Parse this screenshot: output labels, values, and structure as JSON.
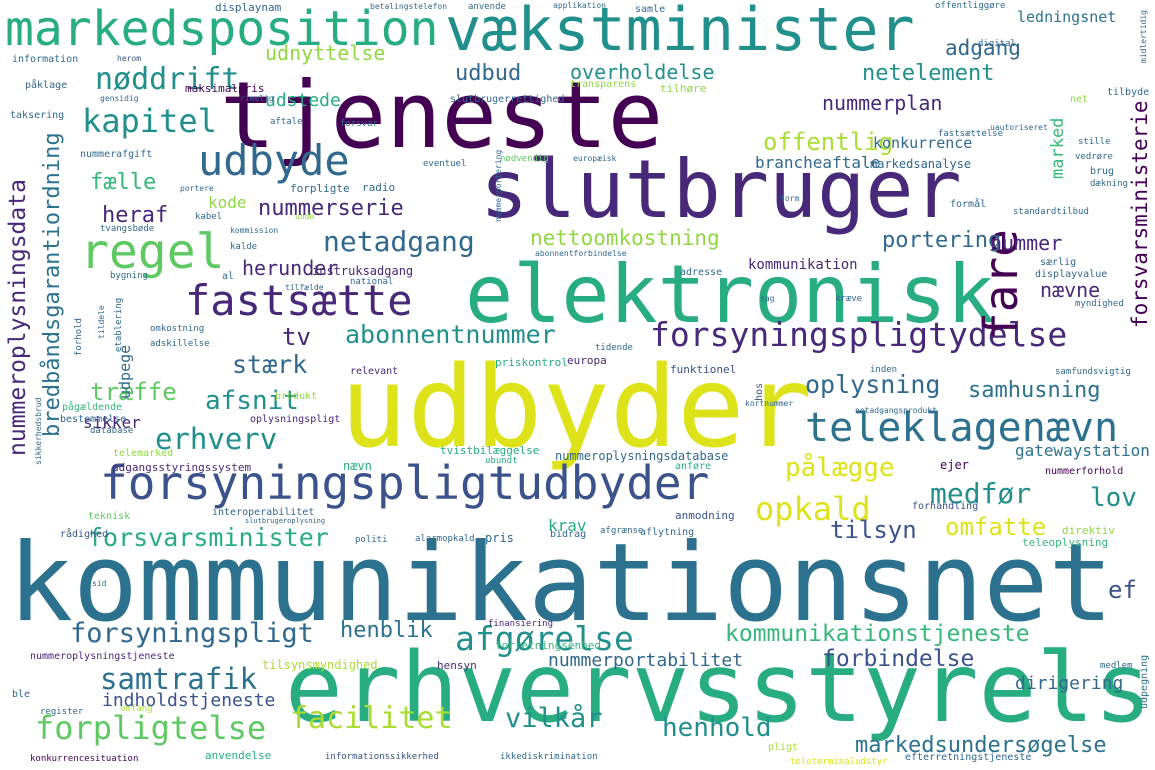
{
  "words": [
    "kommunikationsnet",
    "udbyder",
    "erhvervsstyrelse",
    "tjeneste",
    "slutbruger",
    "elektronisk",
    "vækstminister",
    "markedsposition",
    "forsyningspligtudbyder",
    "teleklagenævn",
    "forsyningspligtydelse",
    "fastsætte",
    "regel",
    "udbyde",
    "fare",
    "kapitel",
    "nøddrift",
    "udnyttelse",
    "netadgang",
    "nettoomkostning",
    "abonnentnummer",
    "forsvarsminister",
    "forsyningspligt",
    "henblik",
    "afgørelse",
    "kommunikationstjeneste",
    "samtrafik",
    "forpligtelse",
    "facilitet",
    "vilkår",
    "henhold",
    "markedsundersøgelse",
    "nummerportabilitet",
    "forbindelse",
    "dirigering",
    "opkald",
    "medfør",
    "pålægge",
    "tilsyn",
    "omfatte",
    "lov",
    "ef",
    "oplysning",
    "samhusning",
    "afsnit",
    "erhverv",
    "træffe",
    "stærk",
    "sikker",
    "udpege",
    "tv",
    "herunder",
    "heraf",
    "fælle",
    "kode",
    "nummerserie",
    "portering",
    "nummer",
    "nævne",
    "offentlig",
    "marked",
    "brancheaftale",
    "nummerplan",
    "netelement",
    "adgang",
    "overholdelse",
    "udbud",
    "udstede",
    "forsvarsministerie",
    "nummeroplysningsdata",
    "bredbåndsgarantiordning",
    "indholdstjeneste",
    "gatewaystation",
    "krav",
    "ledningsnet",
    "konkurrence",
    "markedsanalyse",
    "kommunikation",
    "instruksadgang",
    "nummeroplysningsdatabase",
    "tvistbilæggelse",
    "adgangsstyringssystem",
    "nævn",
    "telemarked",
    "priskontrol",
    "europa",
    "relevant",
    "produkt",
    "oplysningspligt",
    "pågældende",
    "bestemmelse",
    "database",
    "teknisk",
    "interoperabilitet",
    "anmodning",
    "forhandling",
    "nummerforhold",
    "anføre",
    "ejer",
    "ubundt",
    "direktiv",
    "teleoplysning",
    "samfundsvigtig",
    "funktionel",
    "hos",
    "inden",
    "rådighed",
    "politi",
    "alarmopkald",
    "pris",
    "bidrag",
    "aflytning",
    "afgrænse",
    "finansiering",
    "forretningsenhed",
    "nummeroplysningstjeneste",
    "tilsynsmyndighed",
    "hensyn",
    "medlem",
    "udpegning",
    "register",
    "omfang",
    "ble",
    "konkurrencesituation",
    "anvendelse",
    "informationssikkerhed",
    "ikkediskrimination",
    "pligt",
    "efterretningstjeneste",
    "teleterminaludstyr",
    "displaynam",
    "betalingstelefon",
    "anvende",
    "applikation",
    "samle",
    "offentliggøre",
    "digital",
    "information",
    "herom",
    "maksimalpris",
    "rimelig",
    "tilhøre",
    "net",
    "tilbyde",
    "påklage",
    "gensidig",
    "slutbrugerrettighed",
    "transparens",
    "taksering",
    "aftale",
    "forsvar",
    "uautoriseret",
    "stille",
    "nummerafgift",
    "eventuel",
    "nødvendig",
    "europæisk",
    "vedrøre",
    "brug",
    "dækning",
    "kabel",
    "forpligte",
    "radio",
    "tvangsbøde",
    "unde",
    "form",
    "formål",
    "standardtilbud",
    "kommission",
    "kalde",
    "abonnentforbindelse",
    "bygning",
    "særlig",
    "displayvalue",
    "tilfælde",
    "national",
    "adresse",
    "sag",
    "kræve",
    "myndighed",
    "al",
    "tildele",
    "etablering",
    "omkostning",
    "adskillelse",
    "tidende",
    "forhold",
    "sid",
    "kortnummer",
    "netadgangsprodukt",
    "fastsættelse",
    "nummerportering",
    "portere",
    "slutbrugeroplysning",
    "sikkerhedsbrud",
    "midlertidig"
  ]
}
